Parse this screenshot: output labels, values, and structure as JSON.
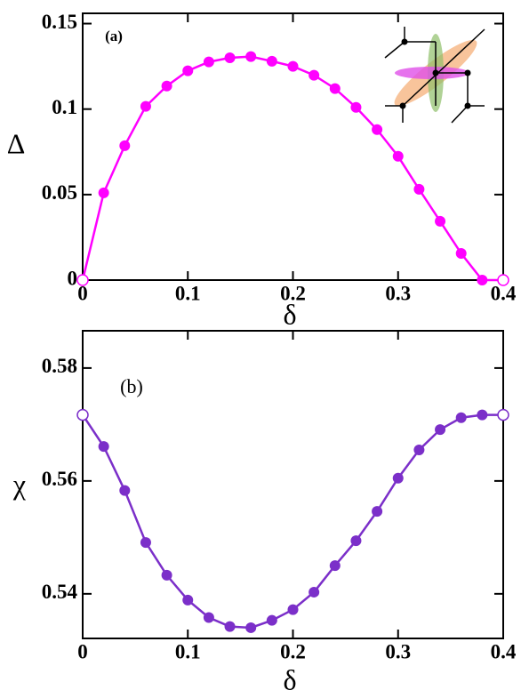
{
  "chart_data": [
    {
      "type": "line",
      "title": "(a)",
      "xlabel": "δ",
      "ylabel": "Δ",
      "color": "#ff00ff",
      "x": [
        0,
        0.02,
        0.04,
        0.06,
        0.08,
        0.1,
        0.12,
        0.14,
        0.16,
        0.18,
        0.2,
        0.22,
        0.24,
        0.26,
        0.28,
        0.3,
        0.32,
        0.34,
        0.36,
        0.38,
        0.4
      ],
      "values": [
        0,
        0.051,
        0.0786,
        0.1016,
        0.1135,
        0.1224,
        0.1276,
        0.13,
        0.1307,
        0.128,
        0.125,
        0.1198,
        0.112,
        0.101,
        0.088,
        0.0724,
        0.0531,
        0.0344,
        0.0156,
        0,
        0
      ],
      "xlim": [
        0,
        0.4
      ],
      "xticks": [
        0,
        0.1,
        0.2,
        0.3,
        0.4
      ],
      "ylim": [
        0,
        0.156
      ],
      "yticks": [
        0,
        0.05,
        0.1,
        0.15
      ]
    },
    {
      "type": "line",
      "title": "(b)",
      "xlabel": "δ",
      "ylabel": "χ",
      "color": "#7b2fc9",
      "x": [
        0,
        0.02,
        0.04,
        0.06,
        0.08,
        0.1,
        0.12,
        0.14,
        0.16,
        0.18,
        0.2,
        0.22,
        0.24,
        0.26,
        0.28,
        0.3,
        0.32,
        0.34,
        0.36,
        0.38,
        0.4
      ],
      "values": [
        0.5717,
        0.5661,
        0.5583,
        0.5491,
        0.5433,
        0.5389,
        0.5358,
        0.5342,
        0.534,
        0.5353,
        0.5372,
        0.5403,
        0.545,
        0.5494,
        0.5546,
        0.5605,
        0.5655,
        0.5691,
        0.5712,
        0.5717,
        0.5717
      ],
      "xlim": [
        0,
        0.4
      ],
      "xticks": [
        0,
        0.1,
        0.2,
        0.3,
        0.4
      ],
      "ylim": [
        0.5321,
        0.5866
      ],
      "yticks": [
        0.54,
        0.56,
        0.58
      ]
    }
  ]
}
